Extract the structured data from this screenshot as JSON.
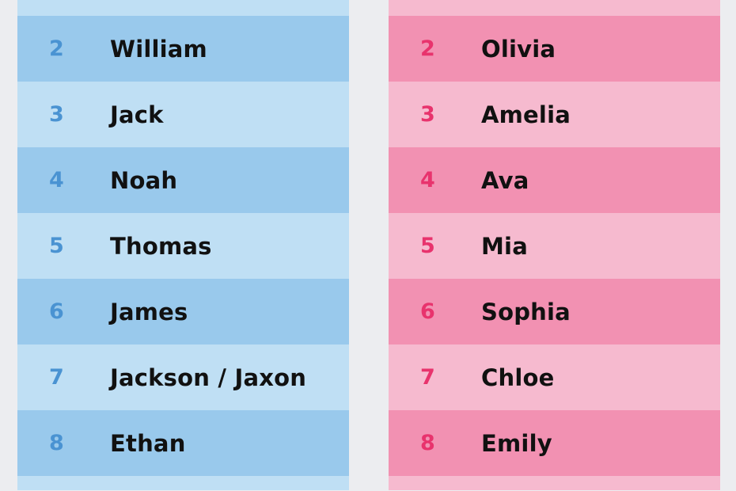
{
  "boys": {
    "rows": [
      {
        "rank": "2",
        "name": "William"
      },
      {
        "rank": "3",
        "name": "Jack"
      },
      {
        "rank": "4",
        "name": "Noah"
      },
      {
        "rank": "5",
        "name": "Thomas"
      },
      {
        "rank": "6",
        "name": "James"
      },
      {
        "rank": "7",
        "name": "Jackson / Jaxon"
      },
      {
        "rank": "8",
        "name": "Ethan"
      }
    ]
  },
  "girls": {
    "rows": [
      {
        "rank": "2",
        "name": "Olivia"
      },
      {
        "rank": "3",
        "name": "Amelia"
      },
      {
        "rank": "4",
        "name": "Ava"
      },
      {
        "rank": "5",
        "name": "Mia"
      },
      {
        "rank": "6",
        "name": "Sophia"
      },
      {
        "rank": "7",
        "name": "Chloe"
      },
      {
        "rank": "8",
        "name": "Emily"
      }
    ]
  },
  "colors": {
    "boys_dark": "#99c9ec",
    "boys_light": "#bfdff4",
    "boys_rank": "#4a93d2",
    "girls_dark": "#f291b2",
    "girls_light": "#f6bacf",
    "girls_rank": "#e8336d"
  }
}
